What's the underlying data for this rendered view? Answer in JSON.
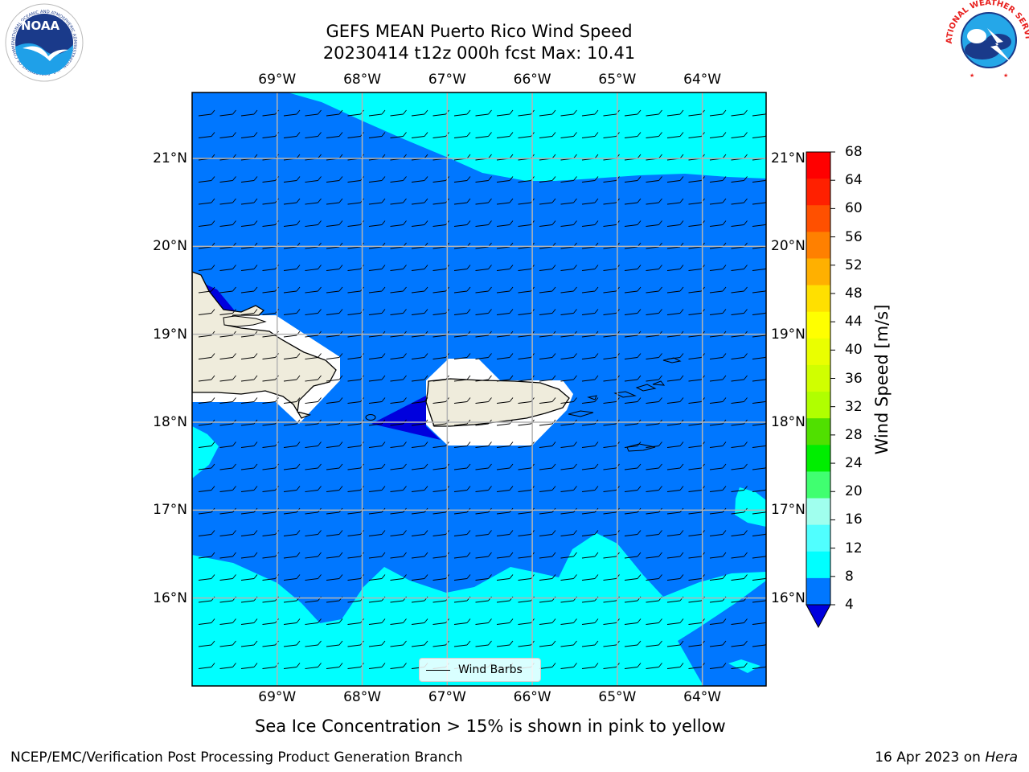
{
  "title": {
    "line1": "GEFS MEAN Puerto Rico Wind Speed",
    "line2": "20230414 t12z 000h fcst   Max: 10.41"
  },
  "map": {
    "lon_range": [
      -70,
      -63.25
    ],
    "lat_range": [
      15,
      21.75
    ],
    "lon_ticks": [
      "69°W",
      "68°W",
      "67°W",
      "66°W",
      "65°W",
      "64°W"
    ],
    "lat_ticks": [
      "21°N",
      "20°N",
      "19°N",
      "18°N",
      "17°N",
      "16°N"
    ],
    "gridlines": true,
    "fill_colors": {
      "4-8": "#0077ff",
      "8-12": "#00ffff",
      "below-4": "#0000dd",
      "land": "#efecdc"
    },
    "features": [
      "Hispaniola (east)",
      "Puerto Rico",
      "Virgin Islands",
      "St. Croix"
    ]
  },
  "legend": {
    "entry": "Wind Barbs"
  },
  "colorbar": {
    "label": "Wind Speed [m/s]",
    "ticks": [
      "68",
      "64",
      "60",
      "56",
      "52",
      "48",
      "44",
      "40",
      "36",
      "32",
      "28",
      "24",
      "20",
      "16",
      "12",
      "8",
      "4"
    ],
    "colors": [
      "#ff0000",
      "#ff2000",
      "#ff5000",
      "#ff8000",
      "#ffb000",
      "#ffe000",
      "#ffff00",
      "#eaff00",
      "#d0ff00",
      "#b0ff00",
      "#50e000",
      "#00ee00",
      "#40ff70",
      "#a0ffee",
      "#50ffff",
      "#00ffff",
      "#0077ff"
    ],
    "extend_min_color": "#0000dd"
  },
  "caption": "Sea Ice Concentration > 15% is shown in pink to yellow",
  "footer": {
    "left": "NCEP/EMC/Verification Post Processing Product Generation Branch",
    "date": "16 Apr 2023 on ",
    "machine": "Hera"
  },
  "logos": {
    "noaa_text": "NOAA",
    "noaa_ring": "NATIONAL OCEANIC AND ATMOSPHERIC ADMINISTRATION · U.S. DEPARTMENT OF COMMERCE",
    "nws_ring": "NATIONAL WEATHER SERVICE"
  }
}
